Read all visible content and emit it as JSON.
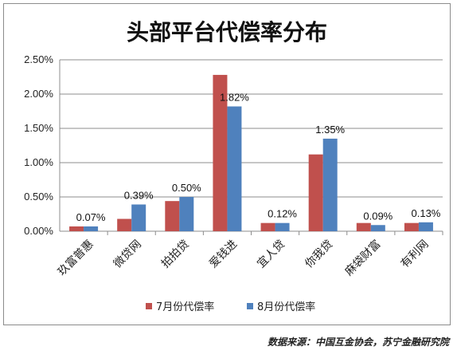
{
  "chart_data": {
    "type": "bar",
    "title": "头部平台代偿率分布",
    "categories": [
      "玖富普惠",
      "微贷网",
      "拍拍贷",
      "爱钱进",
      "宜人贷",
      "你我贷",
      "麻袋财富",
      "有利网"
    ],
    "series": [
      {
        "name": "7月份代偿率",
        "color": "#c0504d",
        "values": [
          0.07,
          0.18,
          0.44,
          2.28,
          0.12,
          1.12,
          0.12,
          0.12
        ]
      },
      {
        "name": "8月份代偿率",
        "color": "#4f81bd",
        "values": [
          0.07,
          0.39,
          0.5,
          1.82,
          0.12,
          1.35,
          0.09,
          0.13
        ],
        "data_labels": [
          "0.07%",
          "0.39%",
          "0.50%",
          "1.82%",
          "0.12%",
          "1.35%",
          "0.09%",
          "0.13%"
        ]
      }
    ],
    "y_ticks": [
      "0.00%",
      "0.50%",
      "1.00%",
      "1.50%",
      "2.00%",
      "2.50%"
    ],
    "ylim": [
      0,
      2.5
    ],
    "y_unit": "%",
    "grid": true,
    "legend_position": "bottom"
  },
  "source_note": "数据来源：中国互金协会，苏宁金融研究院"
}
